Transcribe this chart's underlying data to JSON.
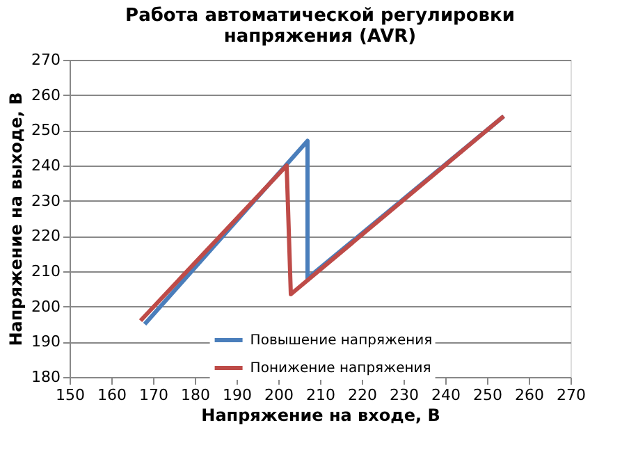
{
  "chart_data": {
    "type": "line",
    "title": "Работа автоматической регулировки напряжения (AVR)",
    "xlabel": "Напряжение на входе, В",
    "ylabel": "Напряжение на выходе, В",
    "series": [
      {
        "name": "Повышение напряжения",
        "color": "#4a7ebb",
        "x": [
          168,
          207,
          207,
          254
        ],
        "values": [
          195,
          247,
          208,
          254
        ]
      },
      {
        "name": "Понижение напряжения",
        "color": "#be4b48",
        "x": [
          167,
          202,
          203,
          254
        ],
        "values": [
          196,
          240,
          203.5,
          254
        ]
      }
    ],
    "xlim": [
      150,
      270
    ],
    "xticks": [
      150,
      160,
      170,
      180,
      190,
      200,
      210,
      220,
      230,
      240,
      250,
      260,
      270
    ],
    "ylim": [
      180,
      270
    ],
    "yticks": [
      180,
      190,
      200,
      210,
      220,
      230,
      240,
      250,
      260,
      270
    ],
    "grid": "y",
    "legend": "bottom",
    "marker": "none",
    "line_style": "solid"
  }
}
